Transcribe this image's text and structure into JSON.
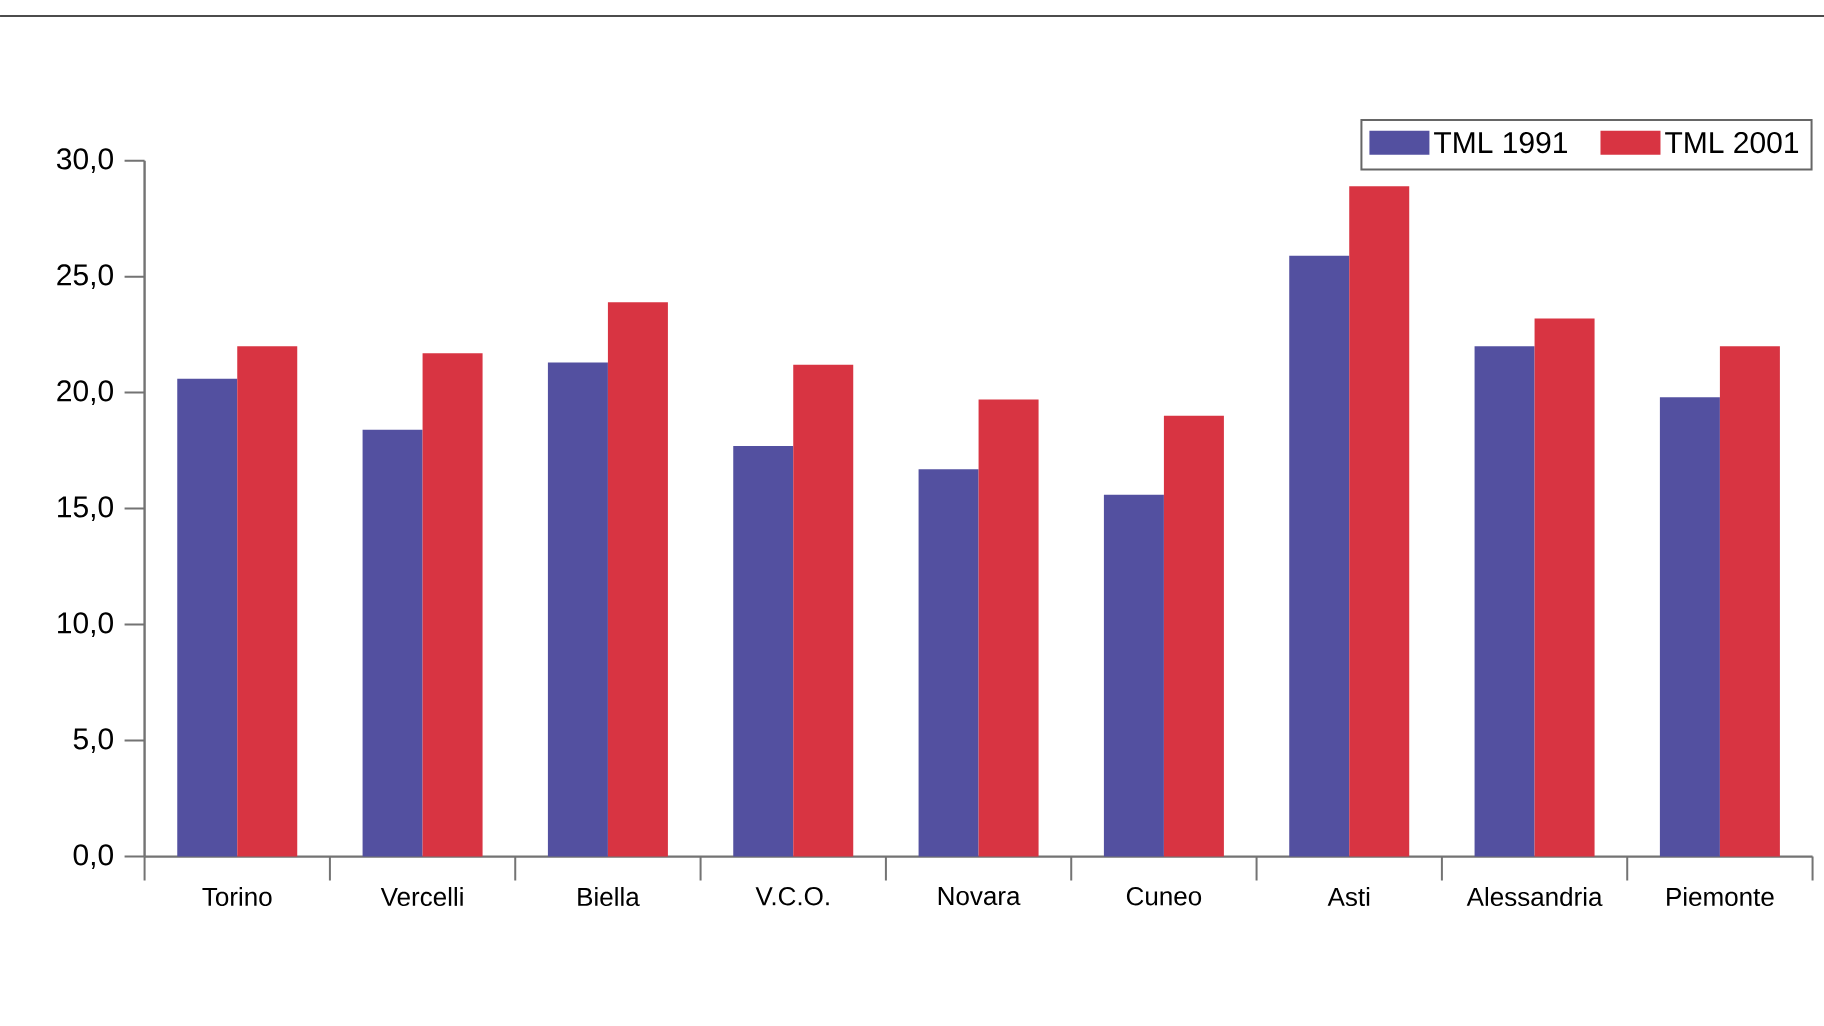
{
  "chart_data": {
    "type": "bar",
    "categories": [
      "Torino",
      "Vercelli",
      "Biella",
      "V.C.O.",
      "Novara",
      "Cuneo",
      "Asti",
      "Alessandria",
      "Piemonte"
    ],
    "series": [
      {
        "name": "TML 1991",
        "color": "#5350a0",
        "values": [
          20.6,
          18.4,
          21.3,
          17.7,
          16.7,
          15.6,
          25.9,
          22.0,
          19.8
        ]
      },
      {
        "name": "TML 2001",
        "color": "#d83442",
        "values": [
          22.0,
          21.7,
          23.9,
          21.2,
          19.7,
          19.0,
          28.9,
          23.2,
          22.0
        ]
      }
    ],
    "ylim": [
      0,
      30
    ],
    "yticks": [
      {
        "value": 0,
        "label": "0,0"
      },
      {
        "value": 5,
        "label": "5,0"
      },
      {
        "value": 10,
        "label": "10,0"
      },
      {
        "value": 15,
        "label": "15,0"
      },
      {
        "value": 20,
        "label": "20,0"
      },
      {
        "value": 25,
        "label": "25,0"
      },
      {
        "value": 30,
        "label": "30,0"
      }
    ],
    "legend": "top right",
    "grid": false
  }
}
